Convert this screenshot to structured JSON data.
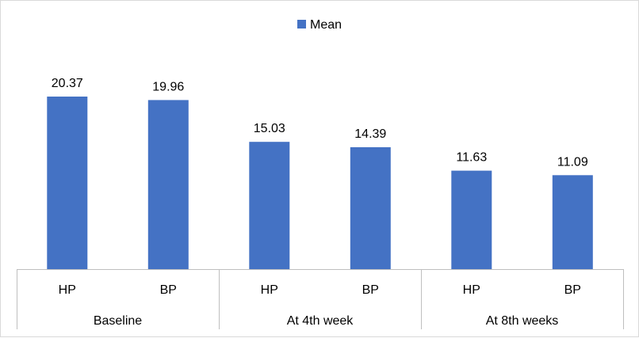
{
  "chart_data": {
    "type": "bar",
    "legend": {
      "label": "Mean",
      "color": "#4472C4",
      "position": "top"
    },
    "groups": [
      {
        "label": "Baseline",
        "categories": [
          "HP",
          "BP"
        ]
      },
      {
        "label": "At 4th week",
        "categories": [
          "HP",
          "BP"
        ]
      },
      {
        "label": "At 8th weeks",
        "categories": [
          "HP",
          "BP"
        ]
      }
    ],
    "series": [
      {
        "name": "Mean",
        "color": "#4472C4",
        "values": [
          20.37,
          19.96,
          15.03,
          14.39,
          11.63,
          11.09
        ],
        "data_labels": [
          "20.37",
          "19.96",
          "15.03",
          "14.39",
          "11.63",
          "11.09"
        ]
      }
    ],
    "ylim": [
      0,
      25
    ],
    "grid": false
  }
}
